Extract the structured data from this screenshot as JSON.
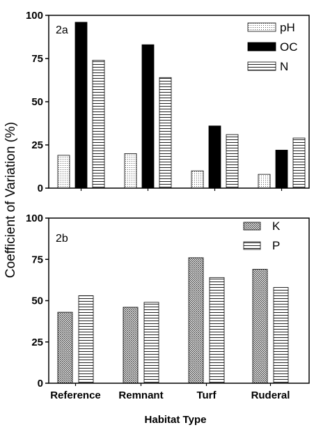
{
  "chart_data": [
    {
      "type": "bar",
      "panel_label": "2a",
      "categories": [
        "Reference",
        "Remnant",
        "Turf",
        "Ruderal"
      ],
      "series": [
        {
          "name": "pH",
          "values": [
            19,
            20,
            10,
            8
          ],
          "pattern": "dots"
        },
        {
          "name": "OC",
          "values": [
            96,
            83,
            36,
            22
          ],
          "pattern": "solid"
        },
        {
          "name": "N",
          "values": [
            74,
            64,
            31,
            29
          ],
          "pattern": "hlines"
        }
      ],
      "ylim": [
        0,
        100
      ],
      "yticks": [
        0,
        25,
        50,
        75,
        100
      ],
      "legend": "top-right"
    },
    {
      "type": "bar",
      "panel_label": "2b",
      "categories": [
        "Reference",
        "Remnant",
        "Turf",
        "Ruderal"
      ],
      "series": [
        {
          "name": "K",
          "values": [
            43,
            46,
            76,
            69
          ],
          "pattern": "crosshatch"
        },
        {
          "name": "P",
          "values": [
            53,
            49,
            64,
            58
          ],
          "pattern": "hlines"
        }
      ],
      "ylim": [
        0,
        100
      ],
      "yticks": [
        0,
        25,
        50,
        75,
        100
      ],
      "legend": "top-right"
    }
  ],
  "ylabel": "Coefficient of Variation (%)",
  "xlabel": "Habitat Type",
  "colors": {
    "ink": "#000000",
    "background": "#ffffff"
  }
}
